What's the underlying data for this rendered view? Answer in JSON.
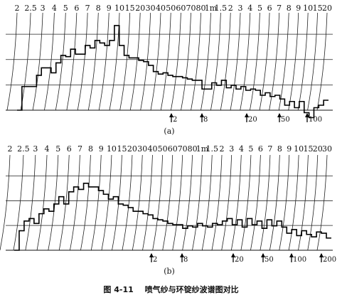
{
  "figure": {
    "caption_number": "图 4-11",
    "caption_text": "喷气纱与环锭纱波谱图对比"
  },
  "chart_data": [
    {
      "type": "line",
      "panel_label": "(a)",
      "title": "",
      "xlabel": "",
      "ylabel": "",
      "x_scale": "log",
      "x_unit_note": "wavelength; cm ticks then m ticks",
      "tick_labels": [
        "2",
        "2.5",
        "3",
        "4",
        "5",
        "6",
        "7",
        "8",
        "9",
        "10",
        "15",
        "20",
        "30",
        "40",
        "50",
        "60",
        "70",
        "80",
        "1m",
        "1.5",
        "2",
        "3",
        "4",
        "5",
        "6",
        "7",
        "8",
        "9",
        "10",
        "15",
        "20"
      ],
      "arrow_markers": [
        "2",
        "8",
        "20",
        "50",
        "100"
      ],
      "grid": true,
      "series": [
        {
          "values": [
            0.0,
            0.95,
            0.95,
            0.95,
            1.4,
            1.7,
            1.7,
            1.5,
            1.9,
            2.2,
            2.15,
            2.45,
            2.25,
            2.25,
            2.6,
            2.5,
            2.8,
            2.7,
            2.6,
            2.8,
            3.4,
            2.6,
            2.2,
            2.1,
            2.1,
            2.0,
            1.95,
            1.8,
            1.55,
            1.45,
            1.5,
            1.4,
            1.35,
            1.35,
            1.3,
            1.25,
            1.2,
            1.2,
            0.85,
            0.85,
            1.1,
            1.0,
            1.2,
            0.9,
            1.0,
            0.85,
            0.95,
            0.8,
            0.85,
            0.8,
            0.6,
            0.7,
            0.55,
            0.6,
            0.45,
            0.2,
            0.35,
            0.1,
            0.35,
            -0.1,
            -0.3,
            0.1,
            0.2,
            0.4
          ]
        }
      ]
    },
    {
      "type": "line",
      "panel_label": "(b)",
      "title": "",
      "xlabel": "",
      "ylabel": "",
      "x_scale": "log",
      "x_unit_note": "wavelength; cm ticks then m ticks",
      "tick_labels": [
        "2",
        "2.5",
        "3",
        "4",
        "5",
        "6",
        "7",
        "8",
        "9",
        "10",
        "15",
        "20",
        "30",
        "40",
        "50",
        "60",
        "70",
        "80",
        "1m",
        "1.5",
        "2",
        "3",
        "4",
        "5",
        "6",
        "7",
        "8",
        "9",
        "10",
        "15",
        "20",
        "30"
      ],
      "arrow_markers": [
        "2",
        "8",
        "20",
        "50",
        "100",
        "200"
      ],
      "grid": true,
      "series": [
        {
          "values": [
            0.0,
            0.8,
            1.2,
            1.3,
            1.1,
            1.5,
            1.7,
            1.6,
            1.9,
            2.2,
            1.9,
            2.4,
            2.6,
            2.5,
            2.75,
            2.6,
            2.6,
            2.45,
            2.3,
            2.1,
            2.2,
            1.9,
            1.85,
            1.75,
            1.6,
            1.6,
            1.5,
            1.45,
            1.3,
            1.25,
            1.2,
            1.1,
            1.05,
            1.05,
            0.9,
            1.0,
            0.95,
            1.1,
            1.0,
            0.95,
            1.1,
            1.05,
            1.2,
            1.3,
            1.05,
            1.25,
            0.95,
            1.3,
            1.05,
            1.2,
            0.9,
            1.25,
            1.0,
            1.2,
            0.95,
            0.7,
            0.85,
            0.6,
            0.8,
            0.65,
            0.55,
            0.75,
            0.7,
            0.5
          ]
        }
      ]
    }
  ]
}
